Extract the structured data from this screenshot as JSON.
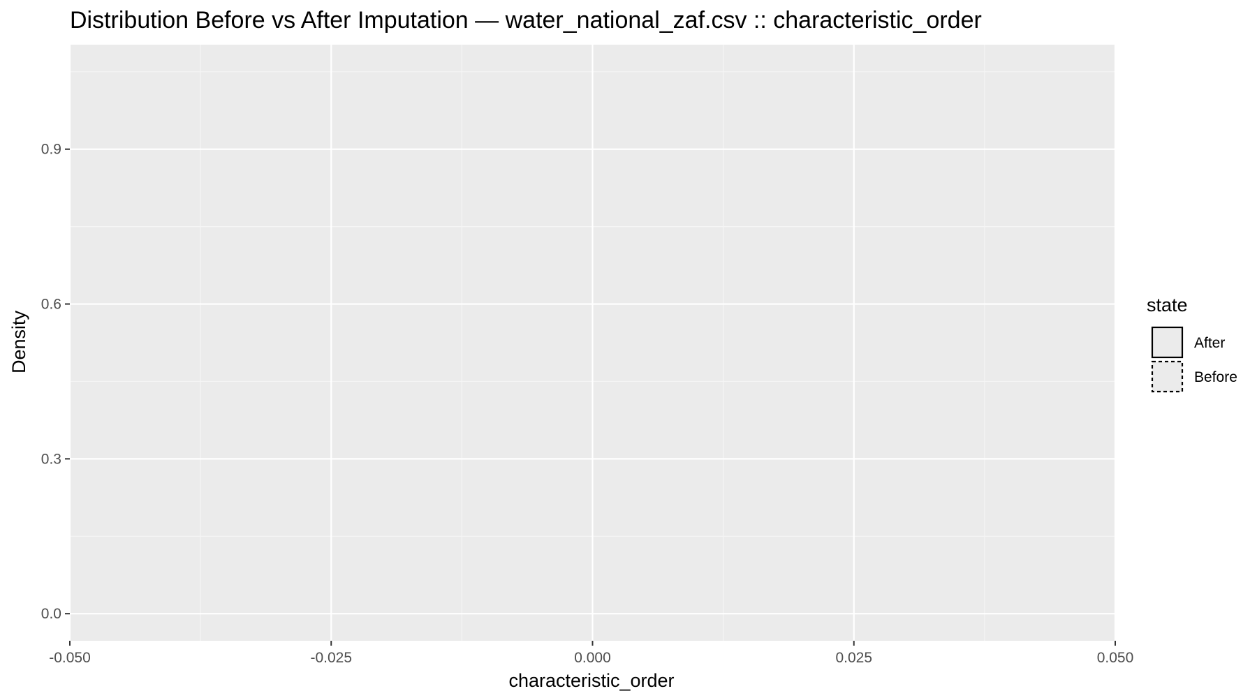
{
  "chart_data": {
    "type": "area",
    "title": "Distribution Before vs After Imputation — water_national_zaf.csv :: characteristic_order",
    "xlabel": "characteristic_order",
    "ylabel": "Density",
    "xlim": [
      -0.05,
      0.05
    ],
    "ylim": [
      -0.0525,
      1.1025
    ],
    "x_ticks": [
      -0.05,
      -0.025,
      0.0,
      0.025,
      0.05
    ],
    "x_tick_labels": [
      "-0.050",
      "-0.025",
      "0.000",
      "0.025",
      "0.050"
    ],
    "y_ticks": [
      0.0,
      0.3,
      0.6,
      0.9
    ],
    "y_tick_labels": [
      "0.0",
      "0.3",
      "0.6",
      "0.9"
    ],
    "grid": true,
    "legend": {
      "title": "state",
      "placement": "right",
      "entries": [
        {
          "label": "After",
          "linetype": "solid"
        },
        {
          "label": "Before",
          "linetype": "dashed"
        }
      ]
    },
    "series": [
      {
        "name": "After",
        "x": [],
        "y": []
      },
      {
        "name": "Before",
        "x": [],
        "y": []
      }
    ]
  },
  "colors": {
    "panel_background": "#ebebeb",
    "grid_major": "#ffffff",
    "grid_minor": "#f5f5f5",
    "tick_color": "#333333",
    "legend_key_fill": "#ebebeb",
    "legend_key_stroke": "#000000"
  }
}
